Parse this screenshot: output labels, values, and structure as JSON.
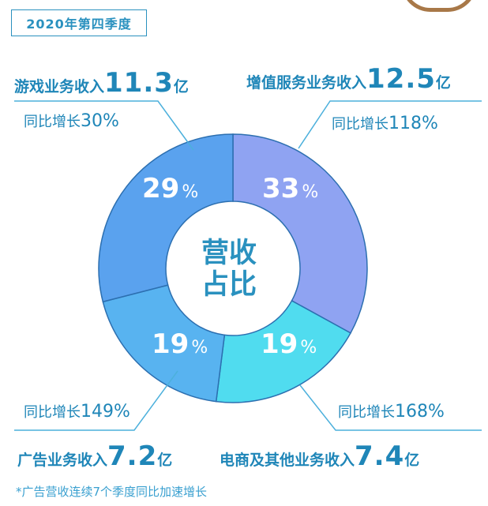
{
  "header": {
    "quarter": "2020年第四季度"
  },
  "center": {
    "line1": "营收",
    "line2": "占比"
  },
  "segments": {
    "vas": {
      "name": "增值服务业务收入",
      "revenue": "12.5",
      "unit": "亿",
      "yoy_label": "同比增长",
      "yoy": "118%",
      "share_num": "33",
      "share_sym": "%"
    },
    "ecom": {
      "name": "电商及其他业务收入",
      "revenue": "7.4",
      "unit": "亿",
      "yoy_label": "同比增长",
      "yoy": "168%",
      "share_num": "19",
      "share_sym": "%"
    },
    "ads": {
      "name": "广告业务收入",
      "revenue": "7.2",
      "unit": "亿",
      "yoy_label": "同比增长",
      "yoy": "149%",
      "share_num": "19",
      "share_sym": "%"
    },
    "game": {
      "name": "游戏业务收入",
      "revenue": "11.3",
      "unit": "亿",
      "yoy_label": "同比增长",
      "yoy": "30%",
      "share_num": "29",
      "share_sym": "%"
    }
  },
  "footnote": "*广告营收连续7个季度同比加速增长",
  "colors": {
    "vas": "#8fa3f2",
    "ecom": "#50dcef",
    "ads": "#58b3f0",
    "game": "#5aa2ee",
    "text": "#1f86b8",
    "lines": "#4cb0dc"
  },
  "chart_data": {
    "type": "pie",
    "title": "",
    "categories": [
      "增值服务业务收入",
      "电商及其他业务收入",
      "广告业务收入",
      "游戏业务收入"
    ],
    "values": [
      33,
      19,
      19,
      29
    ],
    "revenue_yi": [
      12.5,
      7.4,
      7.2,
      11.3
    ],
    "yoy_growth_pct": [
      118,
      168,
      149,
      30
    ],
    "donut": true
  }
}
